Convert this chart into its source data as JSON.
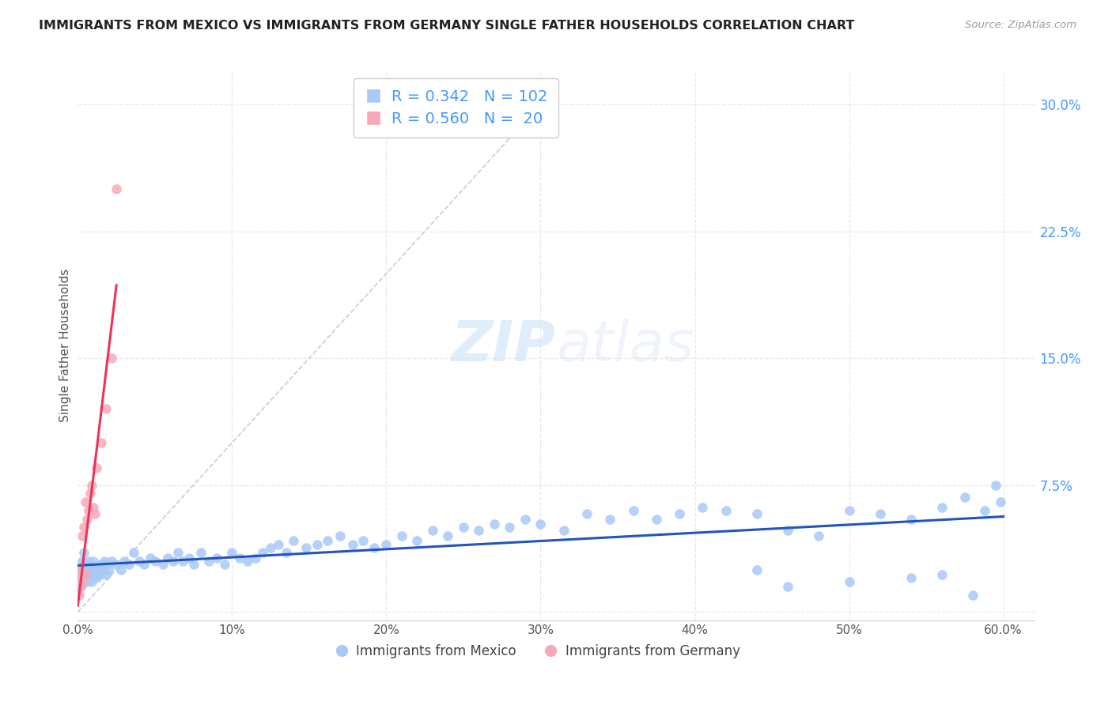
{
  "title": "IMMIGRANTS FROM MEXICO VS IMMIGRANTS FROM GERMANY SINGLE FATHER HOUSEHOLDS CORRELATION CHART",
  "source": "Source: ZipAtlas.com",
  "ylabel": "Single Father Households",
  "xlim": [
    0.0,
    0.62
  ],
  "ylim": [
    -0.005,
    0.32
  ],
  "xticks": [
    0.0,
    0.1,
    0.2,
    0.3,
    0.4,
    0.5,
    0.6
  ],
  "xtick_labels": [
    "0.0%",
    "10%",
    "20%",
    "30%",
    "40%",
    "50%",
    "60.0%"
  ],
  "yticks_right": [
    0.0,
    0.075,
    0.15,
    0.225,
    0.3
  ],
  "ytick_labels_right": [
    "",
    "7.5%",
    "15.0%",
    "22.5%",
    "30.0%"
  ],
  "mexico_R": 0.342,
  "mexico_N": 102,
  "germany_R": 0.56,
  "germany_N": 20,
  "mexico_color": "#a8c8f8",
  "germany_color": "#f8a8b8",
  "trendline_mexico_color": "#2255bb",
  "trendline_germany_color": "#ee3355",
  "diagonal_color": "#cccccc",
  "background_color": "#ffffff",
  "grid_color": "#e8e8e8",
  "title_color": "#222222",
  "source_color": "#999999",
  "right_axis_color": "#4499ff",
  "bottom_axis_color": "#888888",
  "legend_label_mexico": "Immigrants from Mexico",
  "legend_label_germany": "Immigrants from Germany",
  "mexico_x": [
    0.001,
    0.002,
    0.002,
    0.003,
    0.003,
    0.004,
    0.004,
    0.005,
    0.005,
    0.006,
    0.006,
    0.007,
    0.007,
    0.008,
    0.008,
    0.009,
    0.009,
    0.01,
    0.01,
    0.011,
    0.012,
    0.013,
    0.014,
    0.015,
    0.016,
    0.017,
    0.018,
    0.019,
    0.02,
    0.022,
    0.025,
    0.028,
    0.03,
    0.033,
    0.036,
    0.04,
    0.043,
    0.047,
    0.05,
    0.055,
    0.058,
    0.062,
    0.065,
    0.068,
    0.072,
    0.075,
    0.08,
    0.085,
    0.09,
    0.095,
    0.1,
    0.105,
    0.11,
    0.115,
    0.12,
    0.125,
    0.13,
    0.135,
    0.14,
    0.148,
    0.155,
    0.162,
    0.17,
    0.178,
    0.185,
    0.192,
    0.2,
    0.21,
    0.22,
    0.23,
    0.24,
    0.25,
    0.26,
    0.27,
    0.28,
    0.29,
    0.3,
    0.315,
    0.33,
    0.345,
    0.36,
    0.375,
    0.39,
    0.405,
    0.42,
    0.44,
    0.46,
    0.48,
    0.5,
    0.52,
    0.54,
    0.56,
    0.575,
    0.588,
    0.595,
    0.598,
    0.44,
    0.46,
    0.5,
    0.54,
    0.56,
    0.58
  ],
  "mexico_y": [
    0.02,
    0.015,
    0.025,
    0.018,
    0.03,
    0.022,
    0.035,
    0.028,
    0.02,
    0.025,
    0.018,
    0.022,
    0.03,
    0.025,
    0.02,
    0.018,
    0.025,
    0.022,
    0.03,
    0.025,
    0.02,
    0.025,
    0.022,
    0.028,
    0.025,
    0.03,
    0.022,
    0.028,
    0.025,
    0.03,
    0.028,
    0.025,
    0.03,
    0.028,
    0.035,
    0.03,
    0.028,
    0.032,
    0.03,
    0.028,
    0.032,
    0.03,
    0.035,
    0.03,
    0.032,
    0.028,
    0.035,
    0.03,
    0.032,
    0.028,
    0.035,
    0.032,
    0.03,
    0.032,
    0.035,
    0.038,
    0.04,
    0.035,
    0.042,
    0.038,
    0.04,
    0.042,
    0.045,
    0.04,
    0.042,
    0.038,
    0.04,
    0.045,
    0.042,
    0.048,
    0.045,
    0.05,
    0.048,
    0.052,
    0.05,
    0.055,
    0.052,
    0.048,
    0.058,
    0.055,
    0.06,
    0.055,
    0.058,
    0.062,
    0.06,
    0.058,
    0.048,
    0.045,
    0.06,
    0.058,
    0.055,
    0.062,
    0.068,
    0.06,
    0.075,
    0.065,
    0.025,
    0.015,
    0.018,
    0.02,
    0.022,
    0.01
  ],
  "germany_x": [
    0.001,
    0.001,
    0.002,
    0.002,
    0.003,
    0.003,
    0.004,
    0.005,
    0.005,
    0.006,
    0.007,
    0.008,
    0.009,
    0.01,
    0.011,
    0.012,
    0.015,
    0.018,
    0.022,
    0.025
  ],
  "germany_y": [
    0.01,
    0.02,
    0.015,
    0.025,
    0.018,
    0.045,
    0.05,
    0.022,
    0.065,
    0.055,
    0.06,
    0.07,
    0.075,
    0.062,
    0.058,
    0.085,
    0.1,
    0.12,
    0.15,
    0.25
  ]
}
